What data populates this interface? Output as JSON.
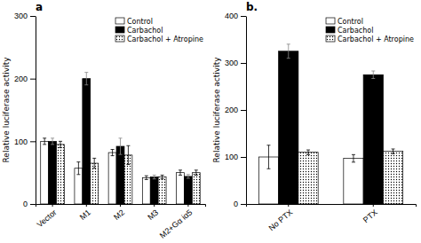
{
  "chart_data": [
    {
      "type": "bar",
      "title": "a",
      "categories": [
        "Vector",
        "M1",
        "M2",
        "M3",
        "M2+Gα iα5"
      ],
      "series": [
        {
          "name": "Control",
          "color": "white",
          "values": [
            100,
            57,
            82,
            42,
            50
          ],
          "errors": [
            5,
            10,
            5,
            3,
            4
          ]
        },
        {
          "name": "Carbachol",
          "color": "black",
          "values": [
            100,
            200,
            92,
            43,
            44
          ],
          "errors": [
            5,
            10,
            13,
            3,
            3
          ]
        },
        {
          "name": "Carbachol + Atropine",
          "color": "white",
          "values": [
            95,
            65,
            78,
            43,
            50
          ],
          "errors": [
            5,
            8,
            15,
            3,
            4
          ]
        }
      ],
      "ylabel": "Relative luciferase activity",
      "ylim": [
        0,
        300
      ],
      "yticks": [
        0,
        100,
        200,
        300
      ],
      "legend": "upper right"
    },
    {
      "type": "bar",
      "title": "b.",
      "categories": [
        "No PTX",
        "PTX"
      ],
      "series": [
        {
          "name": "Control",
          "color": "white",
          "values": [
            100,
            97
          ],
          "errors": [
            25,
            8
          ]
        },
        {
          "name": "Carbachol",
          "color": "black",
          "values": [
            325,
            275
          ],
          "errors": [
            15,
            8
          ]
        },
        {
          "name": "Carbachol + Atropine",
          "color": "white",
          "values": [
            110,
            112
          ],
          "errors": [
            5,
            5
          ]
        }
      ],
      "ylabel": "Relative luciferase activity",
      "ylim": [
        0,
        400
      ],
      "yticks": [
        0,
        100,
        200,
        300,
        400
      ],
      "legend": "upper right"
    }
  ]
}
